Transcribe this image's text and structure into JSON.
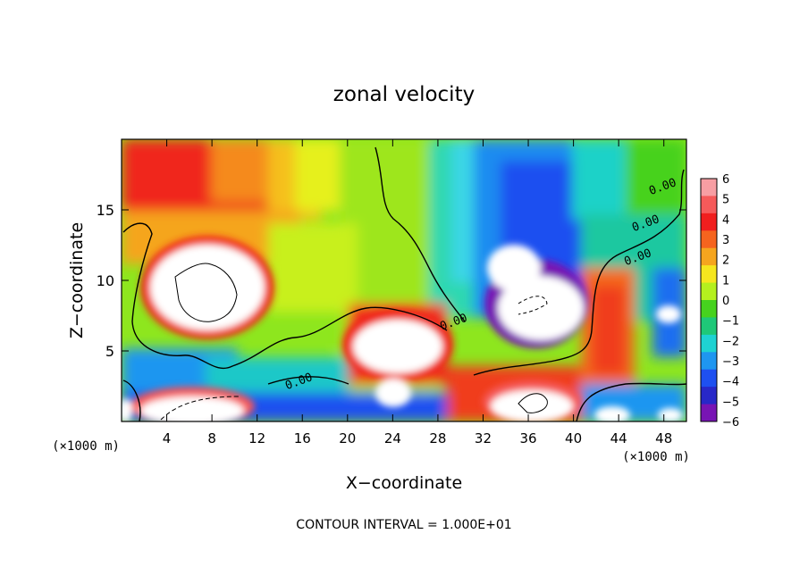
{
  "chart_data": {
    "type": "heatmap",
    "title": "zonal velocity",
    "xlabel": "X−coordinate",
    "ylabel": "Z−coordinate",
    "x_unit_label": "(×1000 m)",
    "z_unit_label": "(×1000 m)",
    "footer": "CONTOUR INTERVAL = 1.000E+01",
    "xlim": [
      0,
      50
    ],
    "ylim": [
      0,
      20
    ],
    "x_ticks": [
      4,
      8,
      12,
      16,
      20,
      24,
      28,
      32,
      36,
      40,
      44,
      48
    ],
    "y_ticks": [
      5,
      10,
      15
    ],
    "colorbar": {
      "levels": [
        6,
        5,
        4,
        3,
        2,
        1,
        0,
        -1,
        -2,
        -3,
        -4,
        -5,
        -6
      ],
      "colors": [
        "#f79ea3",
        "#f55a5a",
        "#f01e1e",
        "#f5641e",
        "#f5a51e",
        "#f5e61e",
        "#b4f01e",
        "#46d21e",
        "#1ec878",
        "#1ed2d2",
        "#1e96f0",
        "#1e50f0",
        "#2828c8",
        "#7814b4"
      ]
    },
    "contour_labels": [
      {
        "text": "0.00",
        "x": 15.8,
        "z": 2.6
      },
      {
        "text": "0.00",
        "x": 29.5,
        "z": 6.8
      },
      {
        "text": "0.00",
        "x": 48.0,
        "z": 16.4
      },
      {
        "text": "0.00",
        "x": 45.8,
        "z": 11.4
      },
      {
        "text": "0.00",
        "x": 46.5,
        "z": 13.8
      }
    ],
    "grid": false,
    "legend_position": "right"
  }
}
